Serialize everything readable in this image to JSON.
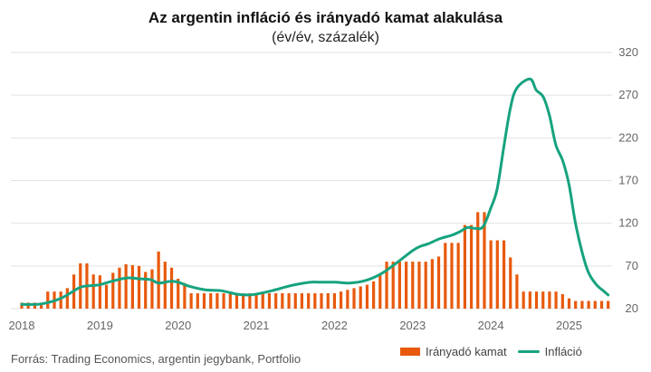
{
  "chart_data": {
    "type": "bar+line",
    "title": "Az argentin infláció és irányadó kamat alakulása",
    "subtitle": "(év/év, százalék)",
    "source": "Forrás: Trading Economics, argentin jegybank, Portfolio",
    "x_ticks": [
      "2018",
      "2019",
      "2020",
      "2021",
      "2022",
      "2023",
      "2024",
      "2025"
    ],
    "y_ticks": [
      20,
      70,
      120,
      170,
      220,
      270,
      320
    ],
    "ylim": [
      20,
      320
    ],
    "xlim": [
      2018.0,
      2025.55
    ],
    "y_axis_side": "right",
    "grid": "horizontal",
    "legend_position": "bottom-right",
    "colors": {
      "bar": "#e8590c",
      "line": "#16a37f",
      "grid": "#e2e2e2"
    },
    "series": [
      {
        "name": "Irányadó kamat",
        "type": "bar",
        "x": [
          2018.0,
          2018.083,
          2018.167,
          2018.25,
          2018.333,
          2018.417,
          2018.5,
          2018.583,
          2018.667,
          2018.75,
          2018.833,
          2018.917,
          2019.0,
          2019.083,
          2019.167,
          2019.25,
          2019.333,
          2019.417,
          2019.5,
          2019.583,
          2019.667,
          2019.75,
          2019.833,
          2019.917,
          2020.0,
          2020.083,
          2020.167,
          2020.25,
          2020.333,
          2020.417,
          2020.5,
          2020.583,
          2020.667,
          2020.75,
          2020.833,
          2020.917,
          2021.0,
          2021.083,
          2021.167,
          2021.25,
          2021.333,
          2021.417,
          2021.5,
          2021.583,
          2021.667,
          2021.75,
          2021.833,
          2021.917,
          2022.0,
          2022.083,
          2022.167,
          2022.25,
          2022.333,
          2022.417,
          2022.5,
          2022.583,
          2022.667,
          2022.75,
          2022.833,
          2022.917,
          2023.0,
          2023.083,
          2023.167,
          2023.25,
          2023.333,
          2023.417,
          2023.5,
          2023.583,
          2023.667,
          2023.75,
          2023.833,
          2023.917,
          2024.0,
          2024.083,
          2024.167,
          2024.25,
          2024.333,
          2024.417,
          2024.5,
          2024.583,
          2024.667,
          2024.75,
          2024.833,
          2024.917,
          2025.0,
          2025.083,
          2025.167,
          2025.25,
          2025.333,
          2025.417,
          2025.5
        ],
        "values": [
          27,
          27,
          27,
          27,
          40,
          40,
          40,
          44,
          60,
          73,
          73,
          60,
          59,
          48,
          62,
          68,
          72,
          71,
          70,
          63,
          66,
          87,
          75,
          68,
          55,
          50,
          38,
          38,
          38,
          38,
          38,
          38,
          38,
          38,
          38,
          38,
          38,
          38,
          38,
          38,
          38,
          38,
          38,
          38,
          38,
          38,
          38,
          38,
          38,
          40,
          42,
          44,
          46,
          48,
          52,
          60,
          75,
          75,
          75,
          75,
          75,
          75,
          75,
          78,
          81,
          97,
          97,
          97,
          118,
          118,
          133,
          133,
          100,
          100,
          100,
          80,
          60,
          40,
          40,
          40,
          40,
          40,
          40,
          37,
          32,
          29,
          29,
          29,
          29,
          29,
          29
        ]
      },
      {
        "name": "Infláció",
        "type": "line",
        "x": [
          2018.0,
          2018.25,
          2018.5,
          2018.75,
          2018.9,
          2019.0,
          2019.15,
          2019.35,
          2019.5,
          2019.65,
          2019.75,
          2019.9,
          2020.0,
          2020.15,
          2020.35,
          2020.55,
          2020.75,
          2020.9,
          2021.0,
          2021.2,
          2021.4,
          2021.55,
          2021.7,
          2021.8,
          2022.0,
          2022.2,
          2022.4,
          2022.6,
          2022.8,
          2023.0,
          2023.1,
          2023.2,
          2023.35,
          2023.5,
          2023.6,
          2023.7,
          2023.8,
          2023.9,
          2024.0,
          2024.08,
          2024.17,
          2024.25,
          2024.33,
          2024.5,
          2024.58,
          2024.67,
          2024.75,
          2024.83,
          2024.92,
          2025.0,
          2025.08,
          2025.17,
          2025.25,
          2025.35,
          2025.45,
          2025.5
        ],
        "values": [
          25,
          25.5,
          32,
          45,
          47,
          48,
          52,
          56,
          55,
          54,
          50,
          52,
          51,
          46,
          42,
          41,
          37,
          36,
          37,
          41,
          46,
          49,
          51,
          51,
          51,
          50,
          53,
          61,
          74,
          88,
          93,
          96,
          102,
          106,
          110,
          115,
          114,
          116,
          138,
          160,
          212,
          255,
          278,
          289,
          276,
          268,
          246,
          212,
          193,
          165,
          121,
          85,
          62,
          48,
          40,
          36
        ]
      }
    ]
  },
  "legend": {
    "bar_label": "Irányadó kamat",
    "line_label": "Infláció"
  }
}
